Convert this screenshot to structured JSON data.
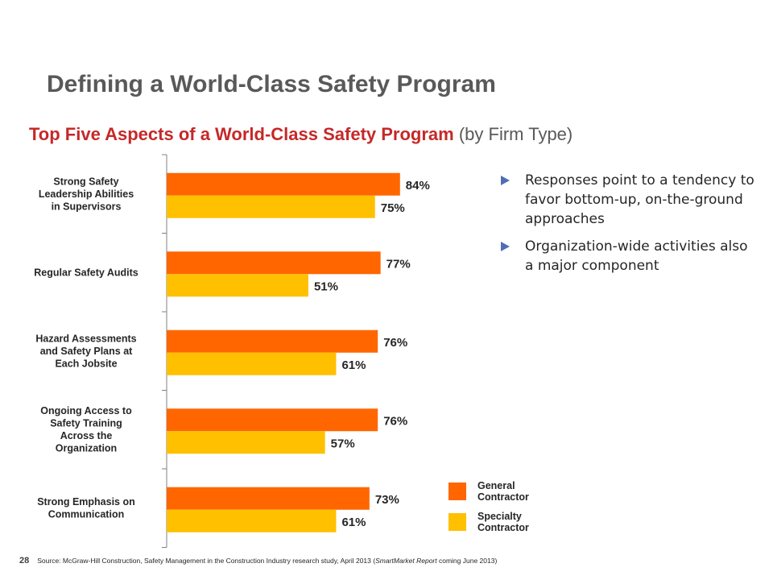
{
  "title": "Defining a World-Class Safety Program",
  "subtitle": {
    "main": "Top Five Aspects of a World-Class Safety Program",
    "paren": " (by Firm Type)"
  },
  "chart_data": {
    "type": "bar",
    "orientation": "horizontal",
    "categories": [
      "Strong Safety Leadership Abilities in Supervisors",
      "Regular Safety Audits",
      "Hazard Assessments and Safety Plans at Each Jobsite",
      "Ongoing Access to Safety Training Across the Organization",
      "Strong Emphasis on Communication"
    ],
    "category_lines": [
      [
        "Strong Safety",
        "Leadership Abilities",
        "in Supervisors"
      ],
      [
        "Regular Safety Audits"
      ],
      [
        "Hazard Assessments",
        "and Safety Plans at",
        "Each Jobsite"
      ],
      [
        "Ongoing Access to",
        "Safety Training",
        "Across the",
        "Organization"
      ],
      [
        "Strong Emphasis on",
        "Communication"
      ]
    ],
    "series": [
      {
        "name": "General Contractor",
        "values": [
          84,
          77,
          76,
          76,
          73
        ],
        "labels": [
          "84%",
          "77%",
          "76%",
          "76%",
          "73%"
        ],
        "color": "#ff6600"
      },
      {
        "name": "Specialty Contractor",
        "values": [
          75,
          51,
          61,
          57,
          61
        ],
        "labels": [
          "75%",
          "51%",
          "61%",
          "57%",
          "61%"
        ],
        "color": "#ffc000"
      }
    ],
    "xlim": [
      0,
      100
    ],
    "grid": false,
    "legend": "bottom-right"
  },
  "legend": {
    "items": [
      {
        "label": "General Contractor",
        "color": "#ff6600"
      },
      {
        "label": "Specialty Contractor",
        "color": "#ffc000"
      }
    ]
  },
  "bullets": [
    "Responses point to a tendency to favor bottom-up, on-the-ground approaches",
    "Organization-wide activities also a major component"
  ],
  "footer": {
    "page_number": "28",
    "source_prefix": "Source: McGraw-Hill Construction, Safety Management in the Construction Industry research study, April 2013 (",
    "source_italic": "SmartMarket Report",
    "source_suffix": " coming June 2013)"
  },
  "colors": {
    "accent_red": "#c62828",
    "bullet_arrow": "#4f6eb5"
  }
}
